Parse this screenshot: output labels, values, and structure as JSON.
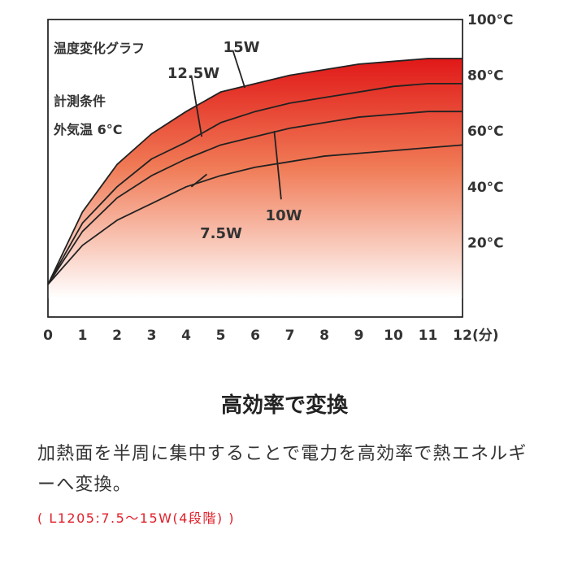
{
  "chart_data": {
    "type": "area",
    "title": "温度変化グラフ",
    "annotations": [
      "計測条件",
      "外気温 6°C"
    ],
    "xlabel": "",
    "ylabel": "",
    "x_unit": "(分)",
    "y_unit": "°C",
    "xlim": [
      0,
      12
    ],
    "ylim": [
      0,
      100
    ],
    "x_ticks": [
      0,
      1,
      2,
      3,
      4,
      5,
      6,
      7,
      8,
      9,
      10,
      11,
      12
    ],
    "y_ticks": [
      20,
      40,
      60,
      80,
      100
    ],
    "grid": false,
    "x": [
      0,
      1,
      2,
      3,
      4,
      5,
      6,
      7,
      8,
      9,
      10,
      11,
      12
    ],
    "series": [
      {
        "name": "7.5W",
        "values": [
          5,
          19,
          28,
          34,
          40,
          44,
          47,
          49,
          51,
          52,
          53,
          54,
          55
        ]
      },
      {
        "name": "10W",
        "values": [
          5,
          24,
          36,
          44,
          50,
          55,
          58,
          61,
          63,
          65,
          66,
          67,
          67
        ]
      },
      {
        "name": "12.5W",
        "values": [
          5,
          27,
          40,
          50,
          56,
          63,
          67,
          70,
          72,
          74,
          76,
          77,
          77
        ]
      },
      {
        "name": "15W",
        "values": [
          5,
          31,
          48,
          59,
          67,
          74,
          77,
          80,
          82,
          84,
          85,
          86,
          86
        ]
      }
    ],
    "fill_colors": {
      "top": "#e01818",
      "bottom": "#ffffff"
    },
    "line_color": "#222222"
  },
  "text": {
    "heading": "高効率で変換",
    "body": "加熱面を半周に集中することで電力を高効率で熱エネルギーへ変換。",
    "spec": "( L1205:7.5～15W(4段階) )"
  }
}
